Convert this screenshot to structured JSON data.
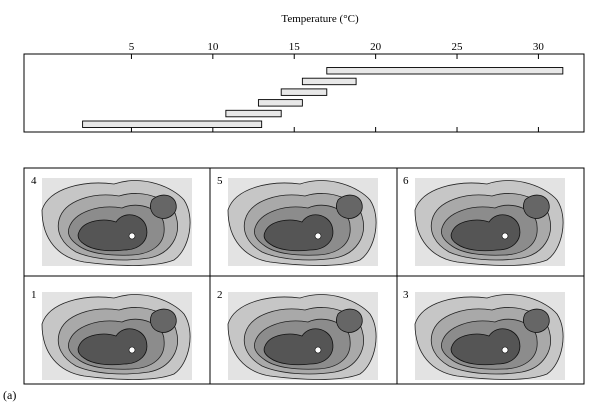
{
  "chart_data": [
    {
      "type": "bar",
      "orientation": "horizontal-range",
      "title": "",
      "xlabel": "Temperature (°C)",
      "xlim": [
        -1.6,
        32.8
      ],
      "xticks": [
        "5",
        "10",
        "15",
        "20",
        "25",
        "30"
      ],
      "tick_values": [
        5,
        10,
        15,
        20,
        25,
        30
      ],
      "ranges": [
        {
          "panel": "1",
          "from": 2.0,
          "to": 13.0
        },
        {
          "panel": "2",
          "from": 10.8,
          "to": 14.2
        },
        {
          "panel": "3",
          "from": 12.8,
          "to": 15.5
        },
        {
          "panel": "4",
          "from": 14.2,
          "to": 17.0
        },
        {
          "panel": "5",
          "from": 15.5,
          "to": 18.8
        },
        {
          "panel": "6",
          "from": 17.0,
          "to": 31.5
        }
      ]
    },
    {
      "type": "heatmap",
      "description_kind": "contour maps",
      "panels": [
        {
          "label": "4"
        },
        {
          "label": "5"
        },
        {
          "label": "6"
        },
        {
          "label": "1"
        },
        {
          "label": "2"
        },
        {
          "label": "3"
        }
      ]
    }
  ],
  "figure_label": "(a)"
}
